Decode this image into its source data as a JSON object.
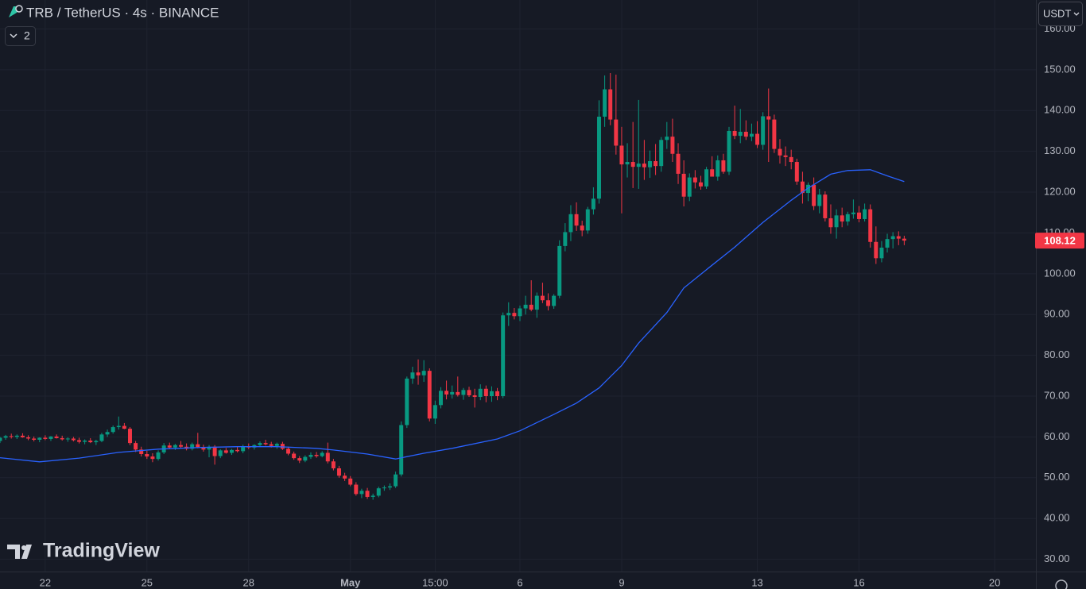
{
  "chart_data": {
    "type": "candlestick",
    "title": "TRB / TetherUS · 4s · BINANCE",
    "indicator_count": "2",
    "currency": "USDT",
    "watermark": "TradingView",
    "up_color": "#089981",
    "down_color": "#f23645",
    "grid": true,
    "xlim": [
      0,
      183.3
    ],
    "ylim": [
      27.0,
      167.1
    ],
    "yticks": [
      {
        "value": 30,
        "label": "30.00"
      },
      {
        "value": 40,
        "label": "40.00"
      },
      {
        "value": 50,
        "label": "50.00"
      },
      {
        "value": 60,
        "label": "60.00"
      },
      {
        "value": 70,
        "label": "70.00"
      },
      {
        "value": 80,
        "label": "80.00"
      },
      {
        "value": 90,
        "label": "90.00"
      },
      {
        "value": 100,
        "label": "100.00"
      },
      {
        "value": 110,
        "label": "110.00"
      },
      {
        "value": 120,
        "label": "120.00"
      },
      {
        "value": 130,
        "label": "130.00"
      },
      {
        "value": 140,
        "label": "140.00"
      },
      {
        "value": 150,
        "label": "150.00"
      },
      {
        "value": 160,
        "label": "160.00"
      }
    ],
    "xticks": [
      {
        "value": 8,
        "label": "22"
      },
      {
        "value": 26,
        "label": "25"
      },
      {
        "value": 44,
        "label": "28"
      },
      {
        "value": 62,
        "label": "May"
      },
      {
        "value": 77,
        "label": "15:00"
      },
      {
        "value": 92,
        "label": "6"
      },
      {
        "value": 110,
        "label": "9"
      },
      {
        "value": 134,
        "label": "13"
      },
      {
        "value": 152,
        "label": "16"
      },
      {
        "value": 176,
        "label": "20"
      }
    ],
    "candles": [
      [
        59,
        60,
        58.5,
        59.8
      ],
      [
        59.8,
        60.5,
        59.3,
        60.2
      ],
      [
        60.2,
        60.8,
        59.6,
        60.0
      ],
      [
        60.0,
        60.6,
        59.5,
        60.3
      ],
      [
        60.3,
        60.9,
        59.8,
        59.9
      ],
      [
        59.9,
        60.4,
        59.2,
        59.6
      ],
      [
        59.6,
        60.1,
        58.9,
        59.3
      ],
      [
        59.3,
        59.9,
        58.7,
        59.8
      ],
      [
        59.8,
        60.4,
        59.2,
        59.5
      ],
      [
        59.5,
        60.2,
        59.0,
        60.1
      ],
      [
        60.1,
        60.6,
        59.6,
        59.7
      ],
      [
        59.7,
        60.3,
        59.1,
        59.4
      ],
      [
        59.4,
        59.9,
        58.8,
        59.6
      ],
      [
        59.6,
        60.0,
        58.9,
        59.2
      ],
      [
        59.2,
        59.8,
        58.4,
        58.8
      ],
      [
        58.8,
        59.4,
        58.2,
        59.1
      ],
      [
        59.1,
        59.7,
        58.5,
        58.7
      ],
      [
        58.7,
        59.3,
        58.0,
        59.0
      ],
      [
        59.0,
        61.0,
        58.7,
        60.6
      ],
      [
        60.6,
        61.8,
        60.0,
        61.2
      ],
      [
        61.2,
        62.8,
        60.8,
        62.4
      ],
      [
        62.4,
        65.0,
        61.8,
        62.7
      ],
      [
        62.7,
        63.4,
        61.9,
        62.0
      ],
      [
        62.0,
        62.4,
        58.0,
        58.5
      ],
      [
        58.5,
        59.0,
        56.3,
        56.9
      ],
      [
        56.9,
        57.6,
        55.2,
        55.8
      ],
      [
        55.8,
        56.6,
        54.6,
        55.2
      ],
      [
        55.2,
        56.0,
        53.8,
        54.6
      ],
      [
        54.6,
        56.7,
        54.2,
        56.2
      ],
      [
        56.2,
        58.5,
        55.8,
        57.9
      ],
      [
        57.9,
        58.6,
        57.0,
        57.4
      ],
      [
        57.4,
        58.3,
        56.8,
        58.0
      ],
      [
        58.0,
        59.0,
        57.3,
        57.6
      ],
      [
        57.6,
        58.4,
        56.7,
        57.1
      ],
      [
        57.1,
        58.6,
        56.7,
        58.2
      ],
      [
        58.2,
        61.0,
        57.2,
        57.5
      ],
      [
        57.5,
        58.1,
        56.4,
        56.9
      ],
      [
        56.9,
        58.0,
        55.0,
        57.6
      ],
      [
        57.6,
        58.0,
        53.2,
        55.3
      ],
      [
        55.3,
        57.0,
        54.8,
        56.7
      ],
      [
        56.7,
        57.3,
        55.9,
        56.1
      ],
      [
        56.1,
        57.1,
        55.6,
        56.8
      ],
      [
        56.8,
        57.6,
        56.2,
        56.5
      ],
      [
        56.5,
        58.1,
        56.0,
        57.7
      ],
      [
        57.7,
        58.4,
        57.0,
        57.4
      ],
      [
        57.4,
        58.2,
        56.9,
        58.0
      ],
      [
        58.0,
        58.9,
        57.5,
        58.5
      ],
      [
        58.5,
        59.3,
        57.9,
        58.2
      ],
      [
        58.2,
        58.8,
        57.4,
        57.8
      ],
      [
        57.8,
        58.6,
        57.1,
        58.3
      ],
      [
        58.3,
        58.8,
        56.8,
        57.1
      ],
      [
        57.1,
        57.6,
        55.5,
        55.9
      ],
      [
        55.9,
        56.4,
        54.4,
        54.8
      ],
      [
        54.8,
        55.3,
        53.6,
        54.2
      ],
      [
        54.2,
        55.5,
        53.8,
        55.1
      ],
      [
        55.1,
        56.2,
        54.6,
        55.6
      ],
      [
        55.6,
        56.3,
        54.9,
        55.3
      ],
      [
        55.3,
        56.5,
        55.0,
        56.1
      ],
      [
        56.1,
        58.6,
        53.5,
        54.0
      ],
      [
        54.0,
        54.6,
        51.8,
        52.3
      ],
      [
        52.3,
        52.9,
        50.0,
        50.5
      ],
      [
        50.5,
        51.2,
        49.2,
        49.8
      ],
      [
        49.8,
        50.4,
        47.9,
        48.3
      ],
      [
        48.3,
        48.9,
        45.6,
        46.0
      ],
      [
        46.0,
        47.3,
        45.0,
        46.8
      ],
      [
        46.8,
        47.5,
        44.8,
        45.3
      ],
      [
        45.3,
        46.1,
        44.6,
        45.6
      ],
      [
        45.6,
        47.8,
        45.2,
        47.4
      ],
      [
        47.4,
        48.1,
        46.8,
        47.6
      ],
      [
        47.6,
        48.6,
        47.0,
        47.9
      ],
      [
        47.9,
        51.5,
        47.5,
        50.8
      ],
      [
        50.8,
        63.8,
        50.3,
        62.9
      ],
      [
        62.9,
        74.8,
        62.2,
        74.3
      ],
      [
        74.3,
        77.2,
        73.0,
        75.8
      ],
      [
        75.8,
        79.0,
        72.8,
        75.1
      ],
      [
        75.1,
        78.8,
        73.5,
        76.2
      ],
      [
        76.2,
        76.8,
        63.8,
        64.5
      ],
      [
        64.5,
        68.9,
        63.2,
        67.8
      ],
      [
        67.8,
        72.2,
        67.0,
        71.3
      ],
      [
        71.3,
        73.8,
        69.2,
        70.4
      ],
      [
        70.4,
        72.6,
        69.4,
        71.0
      ],
      [
        71.0,
        74.8,
        69.9,
        70.3
      ],
      [
        70.3,
        72.0,
        69.1,
        71.5
      ],
      [
        71.5,
        72.3,
        69.8,
        70.2
      ],
      [
        70.2,
        71.8,
        67.2,
        69.8
      ],
      [
        69.8,
        72.9,
        69.0,
        71.8
      ],
      [
        71.8,
        72.6,
        68.5,
        70.0
      ],
      [
        70.0,
        72.4,
        68.6,
        71.2
      ],
      [
        71.2,
        72.0,
        69.0,
        70.0
      ],
      [
        70.0,
        90.5,
        69.5,
        89.8
      ],
      [
        89.8,
        93.0,
        87.2,
        90.4
      ],
      [
        90.4,
        91.6,
        88.8,
        89.6
      ],
      [
        89.6,
        92.2,
        88.4,
        91.5
      ],
      [
        91.5,
        94.6,
        90.0,
        92.4
      ],
      [
        92.4,
        98.4,
        90.8,
        91.2
      ],
      [
        91.2,
        95.4,
        89.2,
        94.6
      ],
      [
        94.6,
        97.8,
        92.8,
        93.5
      ],
      [
        93.5,
        95.2,
        91.0,
        92.1
      ],
      [
        92.1,
        95.0,
        91.4,
        94.6
      ],
      [
        94.6,
        108.2,
        94.0,
        106.8
      ],
      [
        106.8,
        112.4,
        105.5,
        110.2
      ],
      [
        110.2,
        116.8,
        108.0,
        114.6
      ],
      [
        114.6,
        117.5,
        110.5,
        111.8
      ],
      [
        111.8,
        113.0,
        109.2,
        110.6
      ],
      [
        110.6,
        116.4,
        109.8,
        115.8
      ],
      [
        115.8,
        121.2,
        114.5,
        118.4
      ],
      [
        118.4,
        142.5,
        117.2,
        138.5
      ],
      [
        138.5,
        148.6,
        136.0,
        145.2
      ],
      [
        145.2,
        149.2,
        136.4,
        137.8
      ],
      [
        137.8,
        148.8,
        129.2,
        131.4
      ],
      [
        131.4,
        136.0,
        114.8,
        126.8
      ],
      [
        126.8,
        132.0,
        123.6,
        127.4
      ],
      [
        127.4,
        137.2,
        121.0,
        126.2
      ],
      [
        126.2,
        142.6,
        120.8,
        127.0
      ],
      [
        127.0,
        132.8,
        123.0,
        126.1
      ],
      [
        126.1,
        130.2,
        123.5,
        127.6
      ],
      [
        127.6,
        131.8,
        124.2,
        126.4
      ],
      [
        126.4,
        133.5,
        125.0,
        132.8
      ],
      [
        132.8,
        137.2,
        130.6,
        133.6
      ],
      [
        133.6,
        138.0,
        127.4,
        129.4
      ],
      [
        129.4,
        132.0,
        122.0,
        124.5
      ],
      [
        124.5,
        127.8,
        116.5,
        118.9
      ],
      [
        118.9,
        124.6,
        117.8,
        123.6
      ],
      [
        123.6,
        125.4,
        120.9,
        122.4
      ],
      [
        122.4,
        124.0,
        120.6,
        121.4
      ],
      [
        121.4,
        126.2,
        120.8,
        125.6
      ],
      [
        125.6,
        128.8,
        124.2,
        123.8
      ],
      [
        123.8,
        129.0,
        122.8,
        127.8
      ],
      [
        127.8,
        129.4,
        124.5,
        125.0
      ],
      [
        125.0,
        136.0,
        124.2,
        135.0
      ],
      [
        135.0,
        141.2,
        133.0,
        133.8
      ],
      [
        133.8,
        140.4,
        132.0,
        134.8
      ],
      [
        134.8,
        137.6,
        132.8,
        133.6
      ],
      [
        133.6,
        136.8,
        132.5,
        134.3
      ],
      [
        134.3,
        137.4,
        130.8,
        131.6
      ],
      [
        131.6,
        139.6,
        130.4,
        138.6
      ],
      [
        138.6,
        145.4,
        127.4,
        137.8
      ],
      [
        137.8,
        139.0,
        129.6,
        130.6
      ],
      [
        130.6,
        133.0,
        127.0,
        129.0
      ],
      [
        129.0,
        131.2,
        126.4,
        128.6
      ],
      [
        128.6,
        130.4,
        125.6,
        127.4
      ],
      [
        127.4,
        128.2,
        121.8,
        122.6
      ],
      [
        122.6,
        125.0,
        117.2,
        119.8
      ],
      [
        119.8,
        122.4,
        117.8,
        121.8
      ],
      [
        121.8,
        123.6,
        115.6,
        116.6
      ],
      [
        116.6,
        120.8,
        114.8,
        119.4
      ],
      [
        119.4,
        120.2,
        112.8,
        113.6
      ],
      [
        113.6,
        117.0,
        109.8,
        111.4
      ],
      [
        111.4,
        115.8,
        108.6,
        114.3
      ],
      [
        114.3,
        116.2,
        111.4,
        112.8
      ],
      [
        112.8,
        115.2,
        111.8,
        114.6
      ],
      [
        114.6,
        118.2,
        113.5,
        115.0
      ],
      [
        115.0,
        116.6,
        112.6,
        113.4
      ],
      [
        113.4,
        117.2,
        112.8,
        115.8
      ],
      [
        115.8,
        117.0,
        106.4,
        107.8
      ],
      [
        107.8,
        111.6,
        102.4,
        103.8
      ],
      [
        103.8,
        108.0,
        102.8,
        106.4
      ],
      [
        106.4,
        109.8,
        105.2,
        108.5
      ],
      [
        108.5,
        110.2,
        106.2,
        109.2
      ],
      [
        109.2,
        110.4,
        107.0,
        108.6
      ],
      [
        108.6,
        109.3,
        107.0,
        108.12
      ]
    ],
    "ma": {
      "color": "#2962ff",
      "x": [
        0,
        7,
        14,
        21,
        28,
        35,
        42,
        49,
        56,
        59,
        65,
        70,
        75,
        80,
        88,
        92,
        98,
        102,
        106,
        110,
        113,
        118,
        121,
        125,
        130,
        135,
        140,
        143,
        147,
        150,
        154,
        157,
        160
      ],
      "values": [
        54.9,
        53.9,
        54.8,
        56.2,
        57.0,
        57.4,
        57.6,
        57.6,
        57.2,
        56.8,
        55.8,
        54.6,
        56.0,
        57.2,
        59.5,
        61.5,
        65.5,
        68.3,
        72.0,
        77.5,
        83.0,
        90.5,
        96.5,
        101.0,
        106.5,
        112.6,
        118.0,
        121.0,
        124.4,
        125.3,
        125.5,
        124.0,
        122.6
      ]
    }
  }
}
